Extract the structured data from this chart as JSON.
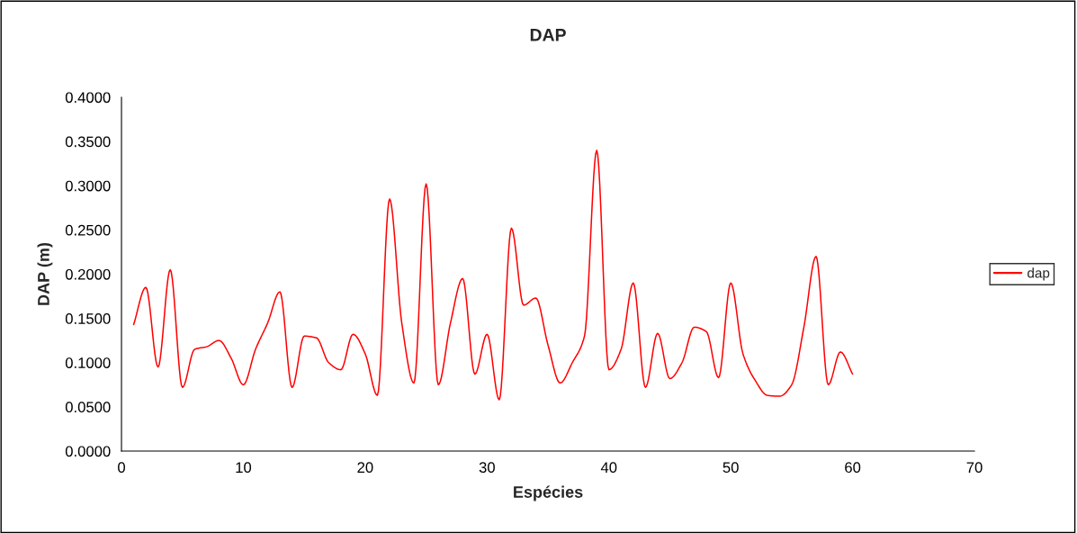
{
  "chart_data": {
    "type": "line",
    "title": "DAP",
    "xlabel": "Espécies",
    "ylabel": "DAP (m)",
    "x": [
      1,
      2,
      3,
      4,
      5,
      6,
      7,
      8,
      9,
      10,
      11,
      12,
      13,
      14,
      15,
      16,
      17,
      18,
      19,
      20,
      21,
      22,
      23,
      24,
      25,
      26,
      27,
      28,
      29,
      30,
      31,
      32,
      33,
      34,
      35,
      36,
      37,
      38,
      39,
      40,
      41,
      42,
      43,
      44,
      45,
      46,
      47,
      48,
      49,
      50,
      51,
      52,
      53,
      54,
      55,
      56,
      57,
      58,
      59,
      60
    ],
    "series": [
      {
        "name": "dap",
        "color": "#ff0000",
        "values": [
          0.143,
          0.185,
          0.095,
          0.205,
          0.072,
          0.115,
          0.118,
          0.125,
          0.105,
          0.075,
          0.115,
          0.145,
          0.18,
          0.072,
          0.13,
          0.128,
          0.1,
          0.092,
          0.132,
          0.11,
          0.063,
          0.285,
          0.145,
          0.077,
          0.302,
          0.075,
          0.145,
          0.195,
          0.087,
          0.132,
          0.058,
          0.252,
          0.165,
          0.173,
          0.12,
          0.077,
          0.1,
          0.13,
          0.34,
          0.092,
          0.115,
          0.19,
          0.072,
          0.133,
          0.082,
          0.1,
          0.14,
          0.135,
          0.083,
          0.19,
          0.11,
          0.08,
          0.063,
          0.062,
          0.075,
          0.14,
          0.22,
          0.075,
          0.112,
          0.087
        ]
      }
    ],
    "xlim": [
      0,
      70
    ],
    "xticks": [
      0,
      10,
      20,
      30,
      40,
      50,
      60,
      70
    ],
    "ylim": [
      0,
      0.4
    ],
    "yticks": [
      {
        "value": 0,
        "label": "0.0000"
      },
      {
        "value": 0.05,
        "label": "0.0500"
      },
      {
        "value": 0.1,
        "label": "0.1000"
      },
      {
        "value": 0.15,
        "label": "0.1500"
      },
      {
        "value": 0.2,
        "label": "0.2000"
      },
      {
        "value": 0.25,
        "label": "0.2500"
      },
      {
        "value": 0.3,
        "label": "0.3000"
      },
      {
        "value": 0.35,
        "label": "0.3500"
      },
      {
        "value": 0.4,
        "label": "0.4000"
      }
    ],
    "grid": false,
    "legend": "right",
    "marker": "none",
    "line_style": "solid"
  }
}
